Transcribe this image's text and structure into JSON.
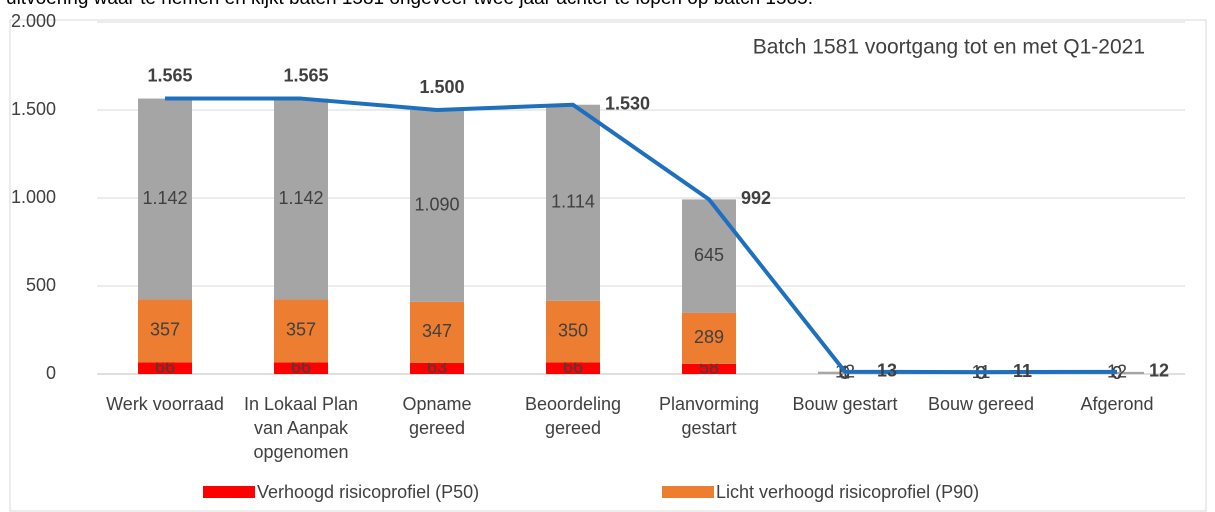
{
  "intro_text": "uitvoering waar te nemen en kijkt baten 1581 ongeveer twee jaar achter te lopen op batch 1585.",
  "chart_data": {
    "type": "bar",
    "stacked": true,
    "annotation": "Batch 1581 voortgang tot en met Q1-2021",
    "categories": [
      "Werk voorraad",
      "In Lokaal Plan van Aanpak opgenomen",
      "Opname gereed",
      "Beoordeling gereed",
      "Planvorming gestart",
      "Bouw gestart",
      "Bouw gereed",
      "Afgerond"
    ],
    "series": [
      {
        "name": "Verhoogd risicoprofiel (P50)",
        "color": "#ff0000",
        "values": [
          66,
          66,
          63,
          66,
          58,
          0,
          0,
          0
        ]
      },
      {
        "name": "Licht verhoogd risicoprofiel (P90)",
        "color": "#ed7d31",
        "values": [
          357,
          357,
          347,
          350,
          289,
          1,
          0,
          0
        ]
      },
      {
        "color": "#a5a5a5",
        "values": [
          1142,
          1142,
          1090,
          1114,
          645,
          12,
          11,
          12
        ],
        "value_labels": [
          "1.142",
          "1.142",
          "1.090",
          "1.114",
          "645",
          "12",
          "11",
          "12"
        ]
      },
      {
        "type": "line",
        "color": "#1f6fbf",
        "values": [
          1565,
          1565,
          1500,
          1530,
          992,
          13,
          11,
          12
        ],
        "value_labels": [
          "1.565",
          "1.565",
          "1.500",
          "1.530",
          "992",
          "13",
          "11",
          "12"
        ]
      }
    ],
    "ylim": [
      0,
      2000
    ],
    "yticks": [
      0,
      500,
      {
        "value": 1000,
        "label": "1.000"
      },
      {
        "value": 1500,
        "label": "1.500"
      },
      {
        "value": 2000,
        "label": "2.000"
      }
    ],
    "grid": true
  }
}
